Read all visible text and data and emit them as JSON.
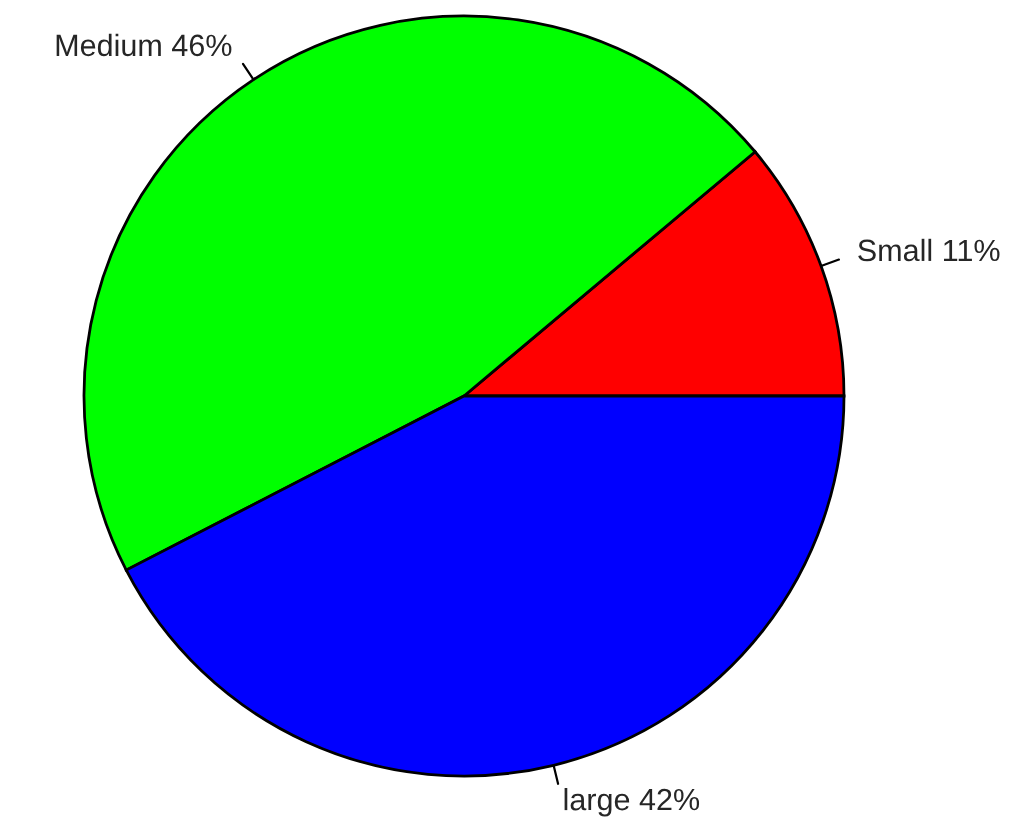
{
  "chart_data": {
    "type": "pie",
    "categories": [
      "Small 11%",
      "Medium 46%",
      "large 42%"
    ],
    "values": [
      11,
      46,
      42
    ],
    "colors": [
      "#ff0000",
      "#00ff00",
      "#0000ff"
    ]
  }
}
